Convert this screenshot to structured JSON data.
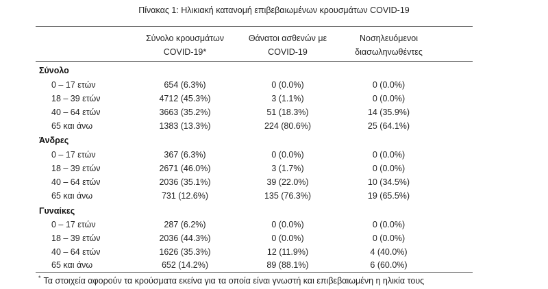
{
  "title": "Πίνακας 1: Ηλικιακή κατανομή επιβεβαιωμένων κρουσμάτων COVID-19",
  "headers": {
    "cases_line1": "Σύνολο κρουσμάτων",
    "cases_line2": "COVID-19*",
    "deaths_line1": "Θάνατοι ασθενών με",
    "deaths_line2": "COVID-19",
    "icu_line1": "Νοσηλευόμενοι",
    "icu_line2": "διασωληνωθέντες"
  },
  "groups": [
    {
      "label": "Σύνολο",
      "rows": [
        {
          "age": "0 – 17 ετών",
          "cases": "654 (6.3%)",
          "deaths": "0 (0.0%)",
          "icu": "0 (0.0%)"
        },
        {
          "age": "18 – 39 ετών",
          "cases": "4712 (45.3%)",
          "deaths": "3 (1.1%)",
          "icu": "0 (0.0%)"
        },
        {
          "age": "40 – 64 ετών",
          "cases": "3663 (35.2%)",
          "deaths": "51 (18.3%)",
          "icu": "14 (35.9%)"
        },
        {
          "age": "65 και άνω",
          "cases": "1383 (13.3%)",
          "deaths": "224 (80.6%)",
          "icu": "25 (64.1%)"
        }
      ]
    },
    {
      "label": "Άνδρες",
      "rows": [
        {
          "age": "0 – 17 ετών",
          "cases": "367 (6.3%)",
          "deaths": "0 (0.0%)",
          "icu": "0 (0.0%)"
        },
        {
          "age": "18 – 39 ετών",
          "cases": "2671 (46.0%)",
          "deaths": "3 (1.7%)",
          "icu": "0 (0.0%)"
        },
        {
          "age": "40 – 64 ετών",
          "cases": "2036 (35.1%)",
          "deaths": "39 (22.0%)",
          "icu": "10 (34.5%)"
        },
        {
          "age": "65 και άνω",
          "cases": "731 (12.6%)",
          "deaths": "135 (76.3%)",
          "icu": "19 (65.5%)"
        }
      ]
    },
    {
      "label": "Γυναίκες",
      "rows": [
        {
          "age": "0 – 17 ετών",
          "cases": "287 (6.2%)",
          "deaths": "0 (0.0%)",
          "icu": "0 (0.0%)"
        },
        {
          "age": "18 – 39 ετών",
          "cases": "2036 (44.3%)",
          "deaths": "0 (0.0%)",
          "icu": "0 (0.0%)"
        },
        {
          "age": "40 – 64 ετών",
          "cases": "1626 (35.3%)",
          "deaths": "12 (11.9%)",
          "icu": "4 (40.0%)"
        },
        {
          "age": "65 και άνω",
          "cases": "652 (14.2%)",
          "deaths": "89 (88.1%)",
          "icu": "6 (60.0%)"
        }
      ]
    }
  ],
  "footnote": {
    "marker": "*",
    "text": "Τα στοιχεία αφορούν τα κρούσματα εκείνα για τα οποία είναι γνωστή και επιβεβαιωμένη η ηλικία τους"
  }
}
